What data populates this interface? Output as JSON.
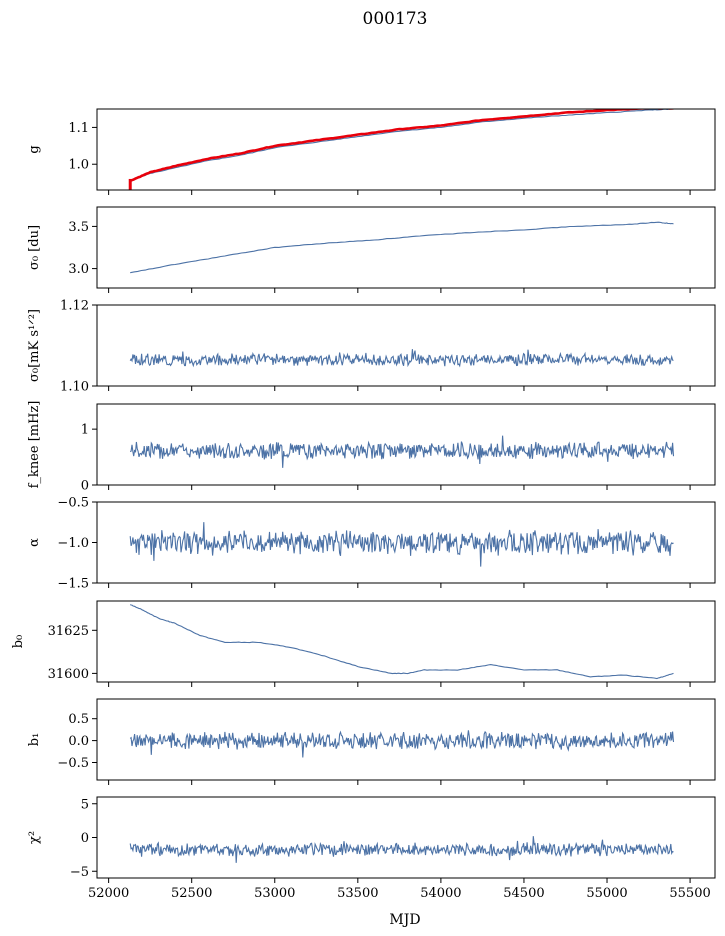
{
  "title": "000173",
  "xlabel": "MJD",
  "colors": {
    "series": "#4c72a6",
    "fit": "#e8000b",
    "frame": "#000000"
  },
  "chart_data": [
    {
      "type": "line",
      "ylabel": "g",
      "ylim": [
        0.93,
        1.15
      ],
      "yticks": [
        1.0,
        1.1
      ],
      "ytick_labels": [
        "1.0",
        "1.1"
      ],
      "series": [
        {
          "values_mode": "blue",
          "x": [
            52130,
            52250,
            52400,
            52600,
            52800,
            53000,
            53250,
            53500,
            53750,
            54000,
            54250,
            54500,
            54750,
            55000,
            55250,
            55400
          ],
          "y": [
            0.955,
            0.975,
            0.99,
            1.01,
            1.025,
            1.045,
            1.06,
            1.075,
            1.09,
            1.1,
            1.115,
            1.125,
            1.133,
            1.14,
            1.147,
            1.15
          ]
        },
        {
          "values_mode": "red",
          "x": [
            52130,
            52250,
            52400,
            52600,
            52800,
            53000,
            53250,
            53500,
            53750,
            54000,
            54250,
            54500,
            54750,
            55000,
            55250,
            55400
          ],
          "y": [
            0.955,
            0.978,
            0.995,
            1.015,
            1.03,
            1.05,
            1.065,
            1.08,
            1.095,
            1.105,
            1.12,
            1.13,
            1.14,
            1.147,
            1.152,
            1.152
          ]
        }
      ]
    },
    {
      "type": "line",
      "ylabel": "σ₀ [du]",
      "ylim": [
        2.77,
        3.73
      ],
      "yticks": [
        3.0,
        3.5
      ],
      "ytick_labels": [
        "3.0",
        "3.5"
      ],
      "series": [
        {
          "x": [
            52130,
            52400,
            52700,
            53000,
            53300,
            53600,
            53900,
            54200,
            54500,
            54800,
            55100,
            55300,
            55400
          ],
          "y": [
            2.95,
            3.05,
            3.15,
            3.25,
            3.3,
            3.34,
            3.39,
            3.43,
            3.46,
            3.5,
            3.52,
            3.55,
            3.53
          ]
        }
      ]
    },
    {
      "type": "line",
      "ylabel": "σ₀[mK s¹ᐟ²]",
      "ylim": [
        1.1,
        1.12
      ],
      "yticks": [
        1.1,
        1.12
      ],
      "ytick_labels": [
        "1.10",
        "1.12"
      ],
      "series": [
        {
          "base": 1.1065,
          "amp": 0.0012,
          "seed": 3,
          "x_range": [
            52130,
            55400
          ]
        }
      ]
    },
    {
      "type": "line",
      "ylabel": "f_knee [mHz]",
      "ylim": [
        0.0,
        1.45
      ],
      "yticks": [
        0,
        1
      ],
      "ytick_labels": [
        "0",
        "1"
      ],
      "series": [
        {
          "base": 0.62,
          "amp": 0.12,
          "seed": 7,
          "x_range": [
            52130,
            55400
          ]
        }
      ]
    },
    {
      "type": "line",
      "ylabel": "α",
      "ylim": [
        -1.5,
        -0.5
      ],
      "yticks": [
        -1.5,
        -1.0,
        -0.5
      ],
      "ytick_labels": [
        "−1.5",
        "−1.0",
        "−0.5"
      ],
      "series": [
        {
          "base": -1.0,
          "amp": 0.12,
          "seed": 11,
          "x_range": [
            52130,
            55400
          ]
        }
      ]
    },
    {
      "type": "line",
      "ylabel": "b₀",
      "ylim": [
        31595,
        31642
      ],
      "yticks": [
        31600,
        31625
      ],
      "ytick_labels": [
        "31600",
        "31625"
      ],
      "series": [
        {
          "x": [
            52130,
            52200,
            52300,
            52400,
            52550,
            52700,
            52900,
            53100,
            53300,
            53500,
            53700,
            53800,
            53900,
            54100,
            54300,
            54500,
            54700,
            54900,
            55100,
            55300,
            55400
          ],
          "y": [
            31640,
            31637,
            31632,
            31629,
            31622,
            31618,
            31618,
            31615,
            31610,
            31604,
            31600,
            31600,
            31602,
            31602,
            31605,
            31602,
            31602,
            31598,
            31599,
            31597,
            31600
          ]
        }
      ]
    },
    {
      "type": "line",
      "ylabel": "b₁",
      "ylim": [
        -0.9,
        0.95
      ],
      "yticks": [
        -0.5,
        0.0,
        0.5
      ],
      "ytick_labels": [
        "−0.5",
        "0.0",
        "0.5"
      ],
      "series": [
        {
          "base": 0.0,
          "amp": 0.16,
          "seed": 19,
          "x_range": [
            52130,
            55400
          ]
        }
      ]
    },
    {
      "type": "line",
      "ylabel": "χ²",
      "ylim": [
        -6,
        6
      ],
      "yticks": [
        -5,
        0,
        5
      ],
      "ytick_labels": [
        "−5",
        "0",
        "5"
      ],
      "series": [
        {
          "base": -1.8,
          "amp": 0.8,
          "seed": 23,
          "x_range": [
            52130,
            55400
          ]
        }
      ]
    }
  ],
  "xaxis": {
    "xlim": [
      51930,
      55650
    ],
    "ticks": [
      52000,
      52500,
      53000,
      53500,
      54000,
      54500,
      55000,
      55500
    ],
    "tick_labels": [
      "52000",
      "52500",
      "53000",
      "53500",
      "54000",
      "54500",
      "55000",
      "55500"
    ]
  }
}
